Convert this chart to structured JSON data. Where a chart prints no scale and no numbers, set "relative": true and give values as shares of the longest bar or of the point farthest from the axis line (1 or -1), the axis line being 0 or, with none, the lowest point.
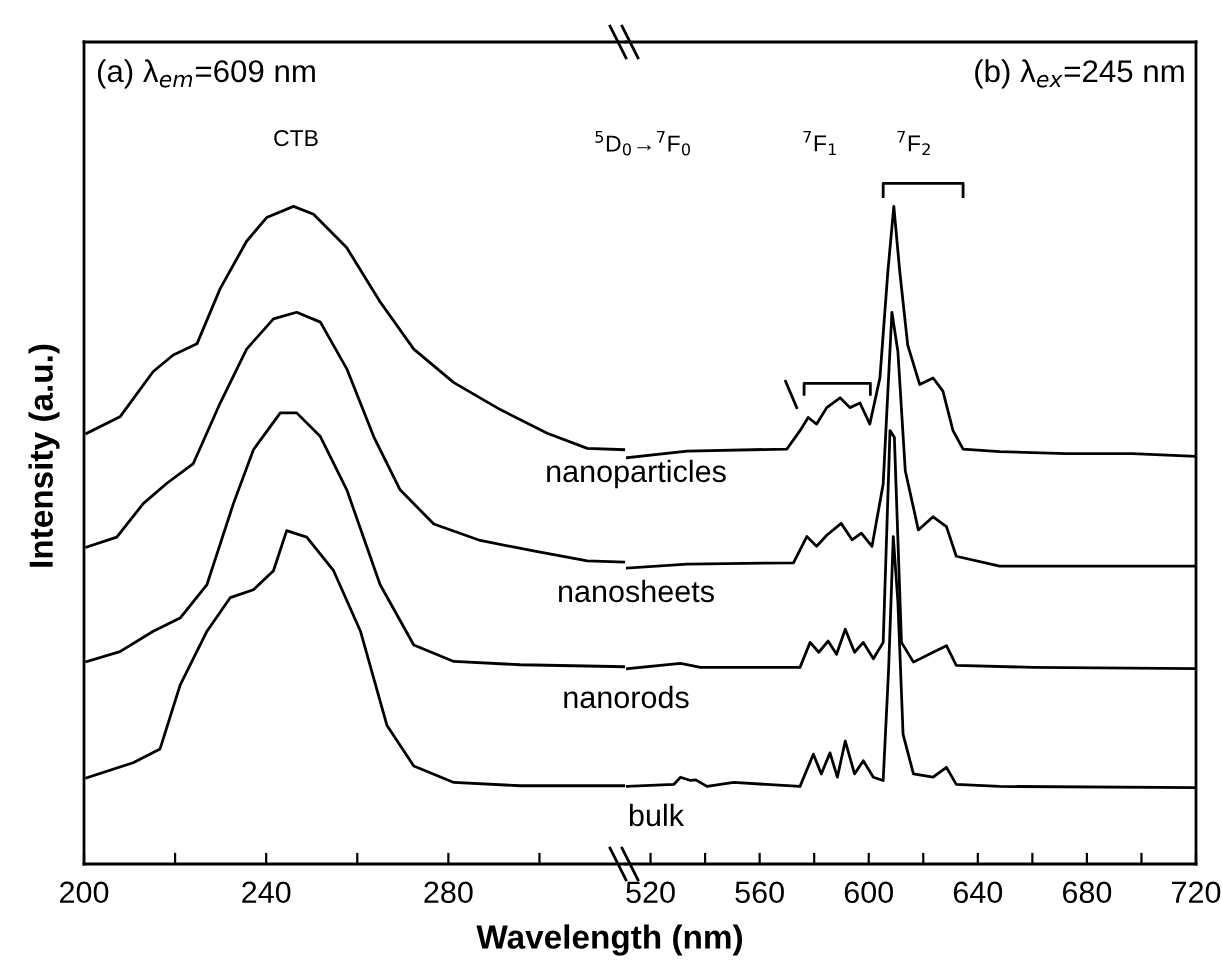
{
  "chart_data": [
    {
      "type": "line",
      "relative": true,
      "xlabel": "Wavelength (nm)",
      "ylabel": "Intensity (a.u.)",
      "xlim": [
        200,
        319
      ],
      "xticks": [
        200,
        {
          "value": 220,
          "label": null
        },
        240,
        {
          "value": 260,
          "label": null
        },
        280,
        {
          "value": 300,
          "label": null
        }
      ],
      "annotations": [
        "(a) λ$_{em}$=609 nm",
        "CTB"
      ],
      "series": [
        {
          "color": "#000000",
          "x": [
            200.6,
            207.9,
            215.2,
            219.6,
            224.8,
            229.9,
            235.7,
            240.1,
            246.0,
            250.4,
            257.7,
            265.0,
            272.4,
            281.2,
            291.4,
            301.7,
            310.5,
            318.5
          ],
          "values": [
            0.655,
            0.68,
            0.749,
            0.774,
            0.791,
            0.875,
            0.947,
            0.983,
            1.0,
            0.988,
            0.937,
            0.855,
            0.783,
            0.732,
            0.691,
            0.655,
            0.632,
            0.63
          ]
        },
        {
          "color": "#000000",
          "x": [
            200.6,
            207.2,
            213.0,
            218.2,
            224.0,
            229.9,
            235.7,
            241.6,
            246.7,
            251.9,
            257.7,
            263.6,
            269.4,
            276.8,
            287.0,
            298.7,
            310.5,
            318.5
          ],
          "values": [
            0.482,
            0.497,
            0.548,
            0.579,
            0.609,
            0.701,
            0.783,
            0.829,
            0.839,
            0.824,
            0.753,
            0.65,
            0.569,
            0.517,
            0.492,
            0.476,
            0.461,
            0.459
          ]
        },
        {
          "color": "#000000",
          "x": [
            200.6,
            207.9,
            215.2,
            221.1,
            227.0,
            232.8,
            237.2,
            243.1,
            246.7,
            251.9,
            257.7,
            265.0,
            272.4,
            281.2,
            295.8,
            318.5
          ],
          "values": [
            0.308,
            0.323,
            0.354,
            0.374,
            0.425,
            0.548,
            0.63,
            0.686,
            0.686,
            0.65,
            0.569,
            0.425,
            0.333,
            0.308,
            0.303,
            0.3
          ]
        },
        {
          "color": "#000000",
          "x": [
            200.6,
            210.8,
            216.7,
            221.1,
            227.0,
            232.1,
            237.2,
            241.6,
            244.5,
            248.9,
            254.8,
            260.7,
            266.5,
            272.4,
            281.2,
            295.8,
            318.5
          ],
          "values": [
            0.131,
            0.154,
            0.175,
            0.272,
            0.354,
            0.405,
            0.417,
            0.446,
            0.507,
            0.497,
            0.446,
            0.354,
            0.211,
            0.149,
            0.124,
            0.119,
            0.119
          ]
        }
      ]
    },
    {
      "type": "line",
      "relative": true,
      "xlim": [
        511,
        720
      ],
      "xticks": [
        520,
        {
          "value": 540,
          "label": null
        },
        560,
        {
          "value": 580,
          "label": null
        },
        600,
        {
          "value": 620,
          "label": null
        },
        640,
        {
          "value": 660,
          "label": null
        },
        680,
        {
          "value": 700,
          "label": null
        },
        720
      ],
      "annotations": [
        "(b) λ$_{ex}$=245 nm",
        "$^{5}$D$_{0}$→$^{7}$F$_{0}$",
        "$^{7}$F$_{1}$",
        "$^{7}$F$_{2}$"
      ],
      "series": [
        {
          "name": "nanoparticles",
          "color": "#000000",
          "x": [
            511.5,
            533.4,
            570,
            574.8,
            577.8,
            580.9,
            584.6,
            589.5,
            593.1,
            596.8,
            600.4,
            604.1,
            607.0,
            609.2,
            611.4,
            614.3,
            618.7,
            623.6,
            627.2,
            630.9,
            634.6,
            648,
            672.3,
            696.7,
            720
          ],
          "values": [
            0.618,
            0.628,
            0.631,
            0.659,
            0.679,
            0.669,
            0.694,
            0.709,
            0.694,
            0.701,
            0.669,
            0.739,
            0.9,
            1.0,
            0.9,
            0.789,
            0.729,
            0.739,
            0.719,
            0.659,
            0.631,
            0.627,
            0.624,
            0.624,
            0.62
          ]
        },
        {
          "name": "nanosheets",
          "color": "#000000",
          "x": [
            511.5,
            533.4,
            572.4,
            577.3,
            580.9,
            584.6,
            589.9,
            593.9,
            597.3,
            601.2,
            605.3,
            608.5,
            610.7,
            613.4,
            618.2,
            623.6,
            628.5,
            632.1,
            648,
            720
          ],
          "values": [
            0.45,
            0.456,
            0.458,
            0.498,
            0.483,
            0.5,
            0.518,
            0.493,
            0.503,
            0.483,
            0.578,
            0.839,
            0.779,
            0.598,
            0.508,
            0.528,
            0.513,
            0.468,
            0.453,
            0.453
          ]
        },
        {
          "name": "nanorods",
          "color": "#000000",
          "x": [
            511.5,
            531,
            538.3,
            574.8,
            578.5,
            581.7,
            585.1,
            588.2,
            591.4,
            594.8,
            598.0,
            601.7,
            605.3,
            607.8,
            609.4,
            612.0,
            616.4,
            623.6,
            628.5,
            632.1,
            660.2,
            720
          ],
          "values": [
            0.297,
            0.305,
            0.299,
            0.299,
            0.337,
            0.322,
            0.339,
            0.319,
            0.357,
            0.322,
            0.337,
            0.312,
            0.337,
            0.659,
            0.649,
            0.337,
            0.307,
            0.322,
            0.332,
            0.302,
            0.299,
            0.297
          ]
        },
        {
          "name": "bulk",
          "color": "#000000",
          "x": [
            511.5,
            528.5,
            531,
            534.6,
            536.6,
            540.7,
            550.5,
            574.8,
            579.7,
            582.6,
            585.8,
            588.5,
            591.4,
            594.8,
            598.0,
            601.7,
            605.3,
            607.3,
            609.0,
            610.7,
            612.6,
            616.4,
            623.6,
            628.5,
            632.1,
            648,
            720
          ],
          "values": [
            0.118,
            0.121,
            0.132,
            0.127,
            0.128,
            0.118,
            0.124,
            0.118,
            0.167,
            0.137,
            0.169,
            0.132,
            0.187,
            0.137,
            0.157,
            0.132,
            0.127,
            0.297,
            0.498,
            0.398,
            0.197,
            0.137,
            0.132,
            0.147,
            0.121,
            0.118,
            0.116
          ]
        }
      ]
    }
  ]
}
